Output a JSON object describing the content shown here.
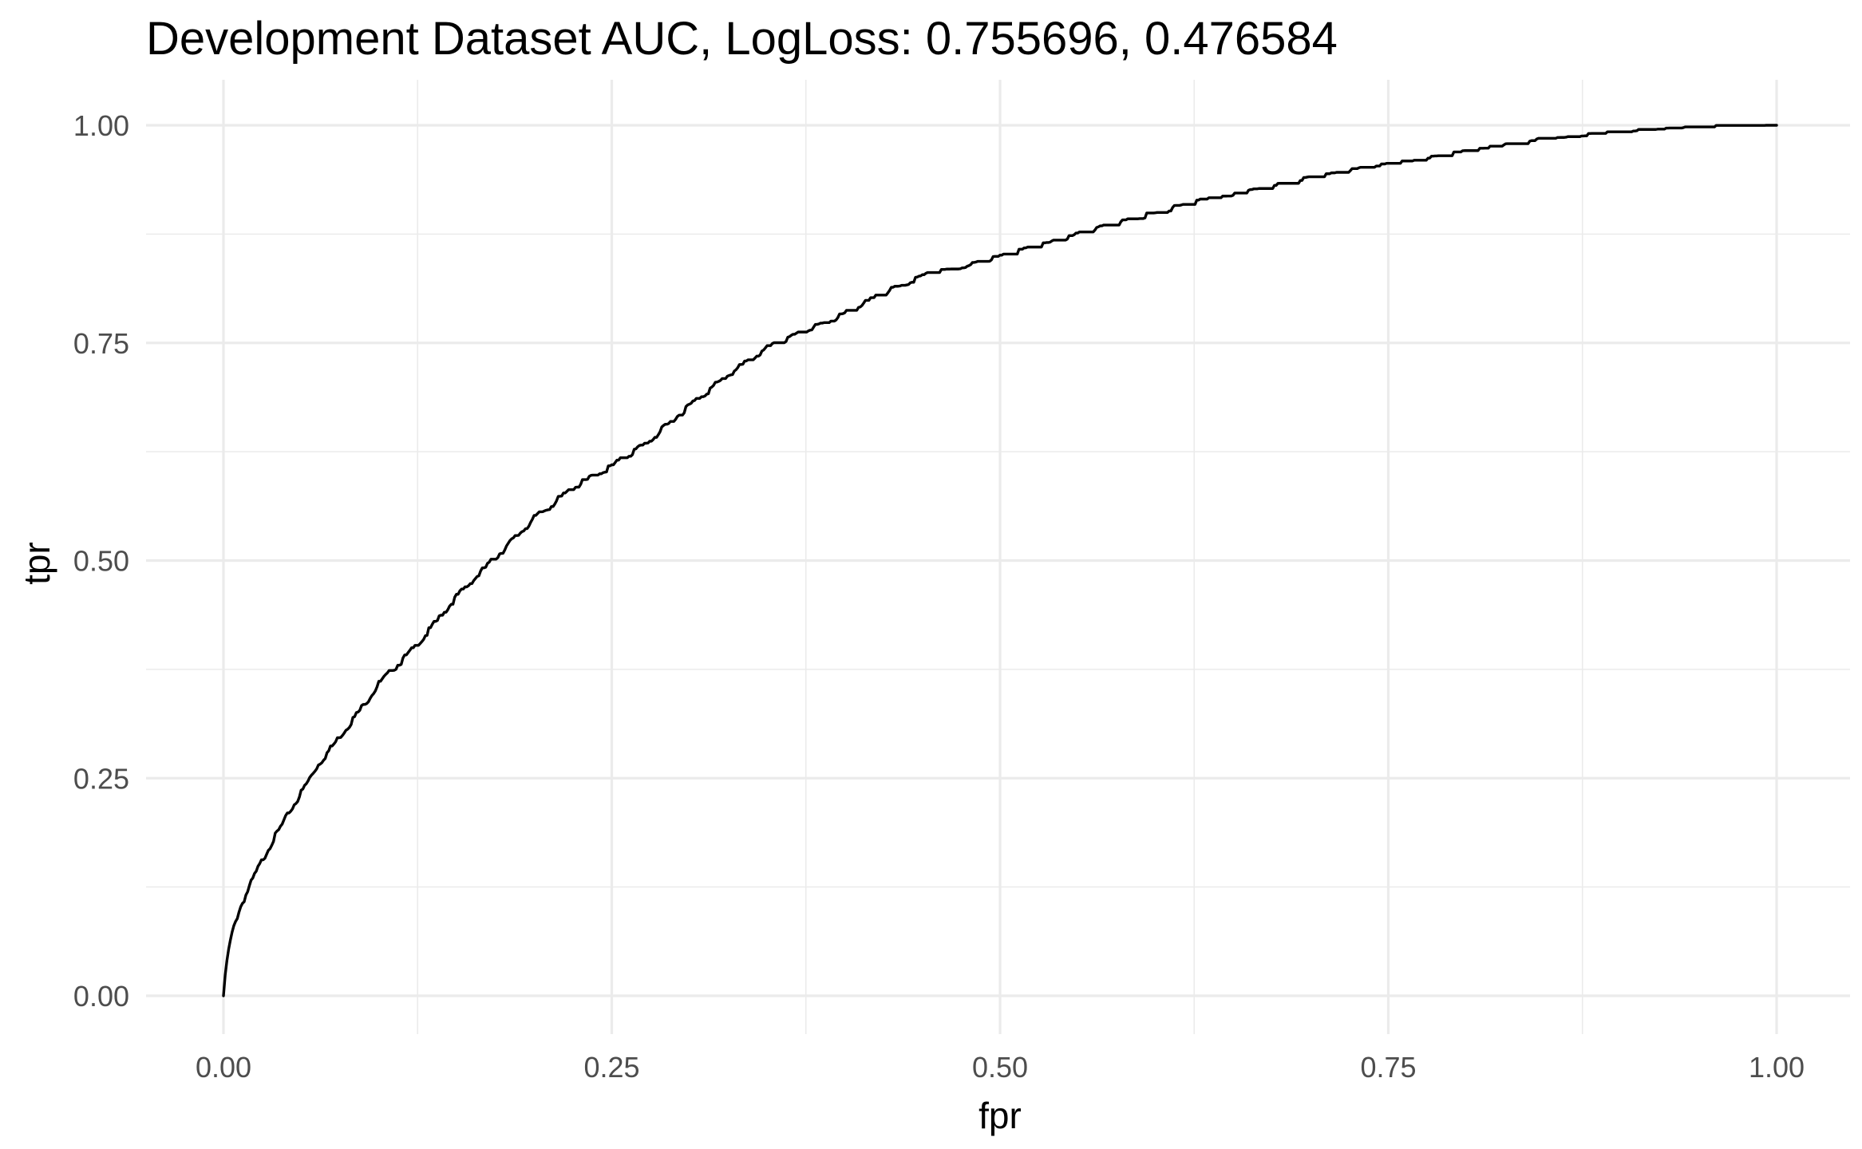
{
  "chart_data": {
    "type": "line",
    "title": "Development Dataset AUC, LogLoss: 0.755696, 0.476584",
    "xlabel": "fpr",
    "ylabel": "tpr",
    "xlim": [
      0,
      1
    ],
    "ylim": [
      0,
      1
    ],
    "grid": true,
    "legend": "none",
    "x_ticks": [
      "0.00",
      "0.25",
      "0.50",
      "0.75",
      "1.00"
    ],
    "y_ticks": [
      "0.00",
      "0.25",
      "0.50",
      "0.75",
      "1.00"
    ],
    "line_color": "#000000",
    "grid_color": "#ebebeb",
    "series": [
      {
        "x": [
          0.0,
          0.002,
          0.005,
          0.01,
          0.02,
          0.03,
          0.04,
          0.05,
          0.06,
          0.075,
          0.09,
          0.1,
          0.125,
          0.15,
          0.175,
          0.2,
          0.225,
          0.25,
          0.275,
          0.3,
          0.325,
          0.35,
          0.375,
          0.4,
          0.425,
          0.45,
          0.475,
          0.5,
          0.525,
          0.55,
          0.575,
          0.6,
          0.625,
          0.65,
          0.675,
          0.7,
          0.725,
          0.75,
          0.775,
          0.8,
          0.825,
          0.85,
          0.875,
          0.9,
          0.925,
          0.95,
          0.975,
          1.0
        ],
        "y": [
          0.0,
          0.04,
          0.07,
          0.1,
          0.14,
          0.175,
          0.205,
          0.235,
          0.265,
          0.3,
          0.335,
          0.36,
          0.405,
          0.46,
          0.505,
          0.55,
          0.585,
          0.61,
          0.64,
          0.68,
          0.715,
          0.745,
          0.765,
          0.785,
          0.808,
          0.828,
          0.838,
          0.85,
          0.862,
          0.875,
          0.888,
          0.9,
          0.912,
          0.92,
          0.93,
          0.94,
          0.948,
          0.955,
          0.962,
          0.97,
          0.977,
          0.984,
          0.988,
          0.992,
          0.995,
          0.997,
          0.999,
          1.0
        ]
      }
    ]
  }
}
